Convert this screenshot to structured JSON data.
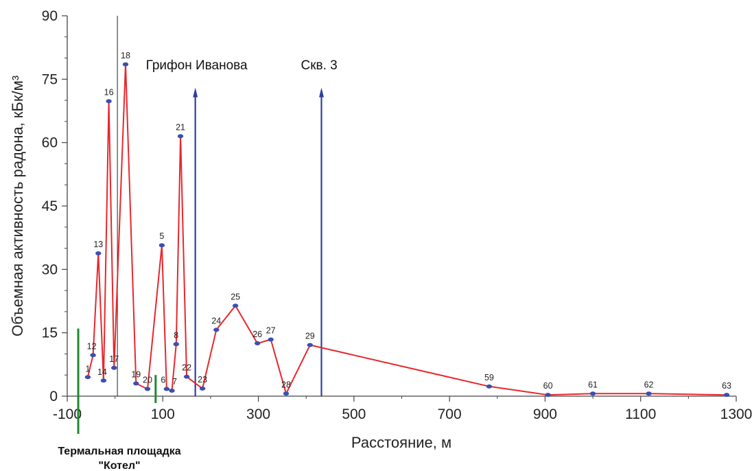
{
  "chart_data": {
    "type": "line",
    "xlabel": "Расстояние, м",
    "ylabel": "Объемная активность радона, кБк/м³",
    "xlim": [
      -100,
      1300
    ],
    "ylim": [
      0,
      90
    ],
    "x_ticks": [
      "-100",
      "100",
      "300",
      "500",
      "700",
      "900",
      "1100",
      "1300"
    ],
    "y_ticks": [
      "0",
      "15",
      "30",
      "45",
      "60",
      "75",
      "90"
    ],
    "grid": false,
    "line_color": "#e8262b",
    "marker_color": "#3b4fb0",
    "points": [
      {
        "label": "1",
        "x": -57,
        "y": 4.5
      },
      {
        "label": "12",
        "x": -46,
        "y": 9.7
      },
      {
        "label": "13",
        "x": -35,
        "y": 33.8
      },
      {
        "label": "14",
        "x": -24,
        "y": 3.7
      },
      {
        "label": "16",
        "x": -13,
        "y": 69.8
      },
      {
        "label": "17",
        "x": -2,
        "y": 6.7
      },
      {
        "label": "18",
        "x": 22,
        "y": 78.5
      },
      {
        "label": "19",
        "x": 44,
        "y": 3.0
      },
      {
        "label": "20",
        "x": 68,
        "y": 1.7
      },
      {
        "label": "5",
        "x": 98,
        "y": 35.7
      },
      {
        "label": "6",
        "x": 108,
        "y": 1.7
      },
      {
        "label": "7",
        "x": 119,
        "y": 1.3
      },
      {
        "label": "8",
        "x": 128,
        "y": 12.3
      },
      {
        "label": "21",
        "x": 137,
        "y": 61.5
      },
      {
        "label": "22",
        "x": 150,
        "y": 4.6
      },
      {
        "label": "23",
        "x": 183,
        "y": 1.8
      },
      {
        "label": "24",
        "x": 212,
        "y": 15.7
      },
      {
        "label": "25",
        "x": 252,
        "y": 21.4
      },
      {
        "label": "26",
        "x": 298,
        "y": 12.5
      },
      {
        "label": "27",
        "x": 326,
        "y": 13.4
      },
      {
        "label": "28",
        "x": 358,
        "y": 0.6
      },
      {
        "label": "29",
        "x": 408,
        "y": 12.1
      },
      {
        "label": "59",
        "x": 783,
        "y": 2.3
      },
      {
        "label": "60",
        "x": 906,
        "y": 0.3
      },
      {
        "label": "61",
        "x": 1000,
        "y": 0.6
      },
      {
        "label": "62",
        "x": 1117,
        "y": 0.6
      },
      {
        "label": "63",
        "x": 1280,
        "y": 0.3
      }
    ],
    "annotations": [
      {
        "text": "Грифон Иванова",
        "x": 168,
        "arrow_top": 73,
        "color": "#2f3f9e"
      },
      {
        "text": "Скв. 3",
        "x": 432,
        "arrow_top": 73,
        "color": "#2f3f9e"
      }
    ],
    "vertical_line": {
      "x": 5,
      "color": "#222222"
    },
    "zone": {
      "label_line1": "Термальная площадка",
      "label_line2": "\"Котел\"",
      "x_start": -77,
      "x_end": 85,
      "color": "#1e8a2e"
    }
  }
}
